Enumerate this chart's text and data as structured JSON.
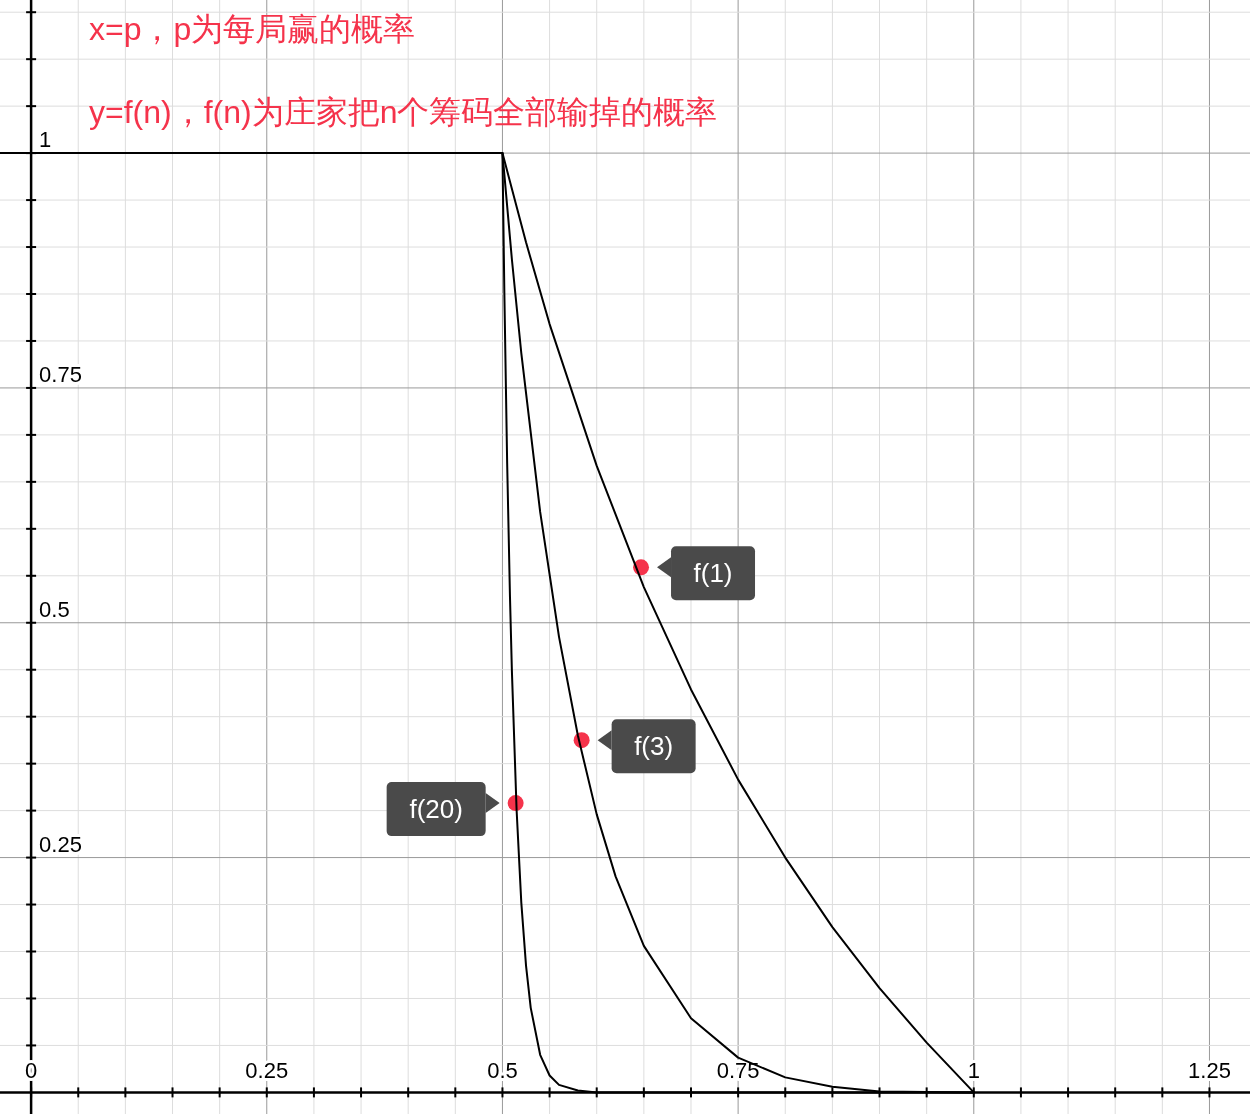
{
  "chart_data": {
    "type": "line",
    "title": "x=p，p为每局赢的概率",
    "subtitle": "y=f(n)，f(n)为庄家把n个筹码全部输掉的概率",
    "xlim": [
      -0.033,
      1.293
    ],
    "ylim": [
      -0.023,
      1.163
    ],
    "grid": true,
    "xticks": [
      0,
      {
        "value": 0.05,
        "label": null
      },
      {
        "value": 0.1,
        "label": null
      },
      {
        "value": 0.15,
        "label": null
      },
      {
        "value": 0.2,
        "label": null
      },
      0.25,
      {
        "value": 0.3,
        "label": null
      },
      {
        "value": 0.35,
        "label": null
      },
      {
        "value": 0.4,
        "label": null
      },
      {
        "value": 0.45,
        "label": null
      },
      0.5,
      {
        "value": 0.55,
        "label": null
      },
      {
        "value": 0.6,
        "label": null
      },
      {
        "value": 0.65,
        "label": null
      },
      {
        "value": 0.7,
        "label": null
      },
      0.75,
      {
        "value": 0.8,
        "label": null
      },
      {
        "value": 0.85,
        "label": null
      },
      {
        "value": 0.9,
        "label": null
      },
      {
        "value": 0.95,
        "label": null
      },
      1,
      {
        "value": 1.05,
        "label": null
      },
      {
        "value": 1.1,
        "label": null
      },
      {
        "value": 1.15,
        "label": null
      },
      {
        "value": 1.2,
        "label": null
      },
      1.25
    ],
    "yticks": [
      {
        "value": 0.05,
        "label": null
      },
      {
        "value": 0.1,
        "label": null
      },
      {
        "value": 0.15,
        "label": null
      },
      {
        "value": 0.2,
        "label": null
      },
      0.25,
      {
        "value": 0.3,
        "label": null
      },
      {
        "value": 0.35,
        "label": null
      },
      {
        "value": 0.4,
        "label": null
      },
      {
        "value": 0.45,
        "label": null
      },
      0.5,
      {
        "value": 0.55,
        "label": null
      },
      {
        "value": 0.6,
        "label": null
      },
      {
        "value": 0.65,
        "label": null
      },
      {
        "value": 0.7,
        "label": null
      },
      0.75,
      {
        "value": 0.8,
        "label": null
      },
      {
        "value": 0.85,
        "label": null
      },
      {
        "value": 0.9,
        "label": null
      },
      {
        "value": 0.95,
        "label": null
      },
      1,
      {
        "value": 1.05,
        "label": null
      },
      {
        "value": 1.1,
        "label": null
      },
      {
        "value": 1.15,
        "label": null
      }
    ],
    "series": [
      {
        "color": "#000000",
        "x": [
          -0.033,
          0.5,
          0.525,
          0.55,
          0.6,
          0.65,
          0.7,
          0.75,
          0.8,
          0.85,
          0.9,
          0.95,
          1
        ],
        "values": [
          1,
          1,
          0.905,
          0.818,
          0.667,
          0.538,
          0.429,
          0.333,
          0.25,
          0.176,
          0.111,
          0.053,
          0
        ]
      },
      {
        "color": "#000000",
        "x": [
          -0.033,
          0.5,
          0.51,
          0.52,
          0.54,
          0.56,
          0.58,
          0.6,
          0.62,
          0.65,
          0.7,
          0.75,
          0.8,
          0.85,
          0.9,
          1
        ],
        "values": [
          1,
          1,
          0.887,
          0.787,
          0.618,
          0.485,
          0.38,
          0.296,
          0.23,
          0.156,
          0.079,
          0.037,
          0.016,
          0.006,
          0.001,
          0
        ]
      },
      {
        "color": "#000000",
        "x": [
          -0.033,
          0.5,
          0.502,
          0.505,
          0.508,
          0.51,
          0.515,
          0.52,
          0.525,
          0.53,
          0.54,
          0.55,
          0.56,
          0.58,
          0.6,
          0.7,
          1
        ],
        "values": [
          1,
          1,
          0.852,
          0.67,
          0.527,
          0.449,
          0.301,
          0.202,
          0.135,
          0.09,
          0.04,
          0.018,
          0.008,
          0.002,
          0,
          0,
          0
        ]
      }
    ],
    "annotations": [
      {
        "text": "f(1)",
        "x": 0.647,
        "y": 0.559
      },
      {
        "text": "f(3)",
        "x": 0.584,
        "y": 0.375
      },
      {
        "text": "f(20)",
        "x": 0.514,
        "y": 0.308
      }
    ]
  }
}
